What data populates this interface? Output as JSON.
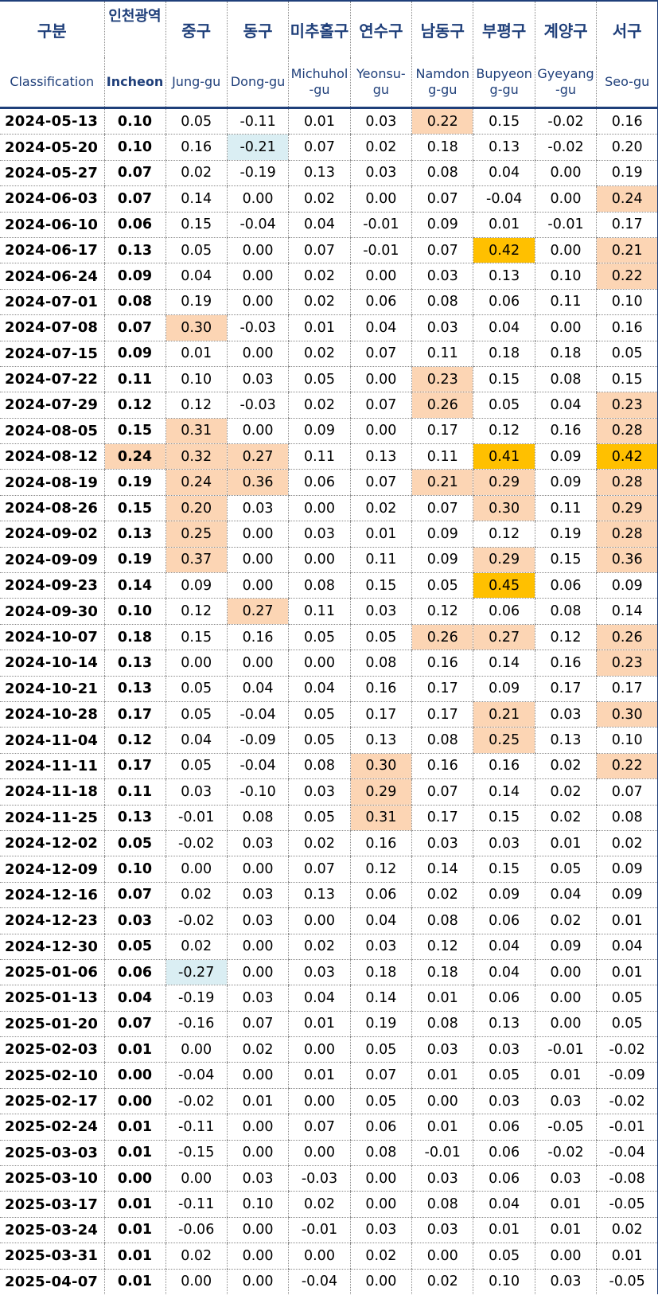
{
  "header": {
    "korean": [
      "구분",
      "인천광역",
      "중구",
      "동구",
      "미추홀구",
      "연수구",
      "남동구",
      "부평구",
      "계양구",
      "서구"
    ],
    "english": [
      "Classification",
      "Incheon",
      "Jung-gu",
      "Dong-gu",
      "Michuhol -gu",
      "Yeonsu- gu",
      "Namdon g-gu",
      "Bupyeon g-gu",
      "Gyeyang -gu",
      "Seo-gu"
    ]
  },
  "colors": {
    "highlight_light": "#fcd5b4",
    "highlight_strong": "#ffc000",
    "highlight_negative": "#daeef3",
    "header_text": "#1f3f7a"
  },
  "rows": [
    {
      "date": "2024-05-13",
      "values": [
        "0.10",
        "0.05",
        "-0.11",
        "0.01",
        "0.03",
        "0.22",
        "0.15",
        "-0.02",
        "0.16"
      ],
      "hl": [
        "",
        "",
        "",
        "",
        "",
        "l",
        "",
        "",
        ""
      ]
    },
    {
      "date": "2024-05-20",
      "values": [
        "0.10",
        "0.16",
        "-0.21",
        "0.07",
        "0.02",
        "0.18",
        "0.13",
        "-0.02",
        "0.20"
      ],
      "hl": [
        "",
        "",
        "n",
        "",
        "",
        "",
        "",
        "",
        ""
      ]
    },
    {
      "date": "2024-05-27",
      "values": [
        "0.07",
        "0.02",
        "-0.19",
        "0.13",
        "0.03",
        "0.08",
        "0.04",
        "0.00",
        "0.19"
      ],
      "hl": [
        "",
        "",
        "",
        "",
        "",
        "",
        "",
        "",
        ""
      ]
    },
    {
      "date": "2024-06-03",
      "values": [
        "0.07",
        "0.14",
        "0.00",
        "0.02",
        "0.00",
        "0.07",
        "-0.04",
        "0.00",
        "0.24"
      ],
      "hl": [
        "",
        "",
        "",
        "",
        "",
        "",
        "",
        "",
        "l"
      ]
    },
    {
      "date": "2024-06-10",
      "values": [
        "0.06",
        "0.15",
        "-0.04",
        "0.04",
        "-0.01",
        "0.09",
        "0.01",
        "-0.01",
        "0.17"
      ],
      "hl": [
        "",
        "",
        "",
        "",
        "",
        "",
        "",
        "",
        ""
      ]
    },
    {
      "date": "2024-06-17",
      "values": [
        "0.13",
        "0.05",
        "0.00",
        "0.07",
        "-0.01",
        "0.07",
        "0.42",
        "0.00",
        "0.21"
      ],
      "hl": [
        "",
        "",
        "",
        "",
        "",
        "",
        "s",
        "",
        "l"
      ]
    },
    {
      "date": "2024-06-24",
      "values": [
        "0.09",
        "0.04",
        "0.00",
        "0.02",
        "0.00",
        "0.03",
        "0.13",
        "0.10",
        "0.22"
      ],
      "hl": [
        "",
        "",
        "",
        "",
        "",
        "",
        "",
        "",
        "l"
      ]
    },
    {
      "date": "2024-07-01",
      "values": [
        "0.08",
        "0.19",
        "0.00",
        "0.02",
        "0.06",
        "0.08",
        "0.06",
        "0.11",
        "0.10"
      ],
      "hl": [
        "",
        "",
        "",
        "",
        "",
        "",
        "",
        "",
        ""
      ]
    },
    {
      "date": "2024-07-08",
      "values": [
        "0.07",
        "0.30",
        "-0.03",
        "0.01",
        "0.04",
        "0.03",
        "0.04",
        "0.00",
        "0.16"
      ],
      "hl": [
        "",
        "l",
        "",
        "",
        "",
        "",
        "",
        "",
        ""
      ]
    },
    {
      "date": "2024-07-15",
      "values": [
        "0.09",
        "0.01",
        "0.00",
        "0.02",
        "0.07",
        "0.11",
        "0.18",
        "0.18",
        "0.05"
      ],
      "hl": [
        "",
        "",
        "",
        "",
        "",
        "",
        "",
        "",
        ""
      ]
    },
    {
      "date": "2024-07-22",
      "values": [
        "0.11",
        "0.10",
        "0.03",
        "0.05",
        "0.00",
        "0.23",
        "0.15",
        "0.08",
        "0.15"
      ],
      "hl": [
        "",
        "",
        "",
        "",
        "",
        "l",
        "",
        "",
        ""
      ]
    },
    {
      "date": "2024-07-29",
      "values": [
        "0.12",
        "0.12",
        "-0.03",
        "0.02",
        "0.07",
        "0.26",
        "0.05",
        "0.04",
        "0.23"
      ],
      "hl": [
        "",
        "",
        "",
        "",
        "",
        "l",
        "",
        "",
        "l"
      ]
    },
    {
      "date": "2024-08-05",
      "values": [
        "0.15",
        "0.31",
        "0.00",
        "0.09",
        "0.00",
        "0.17",
        "0.12",
        "0.16",
        "0.28"
      ],
      "hl": [
        "",
        "l",
        "",
        "",
        "",
        "",
        "",
        "",
        "l"
      ]
    },
    {
      "date": "2024-08-12",
      "values": [
        "0.24",
        "0.32",
        "0.27",
        "0.11",
        "0.13",
        "0.11",
        "0.41",
        "0.09",
        "0.42"
      ],
      "hl": [
        "l",
        "l",
        "l",
        "",
        "",
        "",
        "s",
        "",
        "s"
      ]
    },
    {
      "date": "2024-08-19",
      "values": [
        "0.19",
        "0.24",
        "0.36",
        "0.06",
        "0.07",
        "0.21",
        "0.29",
        "0.09",
        "0.28"
      ],
      "hl": [
        "",
        "l",
        "l",
        "",
        "",
        "l",
        "l",
        "",
        "l"
      ]
    },
    {
      "date": "2024-08-26",
      "values": [
        "0.15",
        "0.20",
        "0.03",
        "0.00",
        "0.02",
        "0.07",
        "0.30",
        "0.11",
        "0.29"
      ],
      "hl": [
        "",
        "l",
        "",
        "",
        "",
        "",
        "l",
        "",
        "l"
      ]
    },
    {
      "date": "2024-09-02",
      "values": [
        "0.13",
        "0.25",
        "0.00",
        "0.03",
        "0.01",
        "0.09",
        "0.12",
        "0.19",
        "0.28"
      ],
      "hl": [
        "",
        "l",
        "",
        "",
        "",
        "",
        "",
        "",
        "l"
      ]
    },
    {
      "date": "2024-09-09",
      "values": [
        "0.19",
        "0.37",
        "0.00",
        "0.00",
        "0.11",
        "0.09",
        "0.29",
        "0.15",
        "0.36"
      ],
      "hl": [
        "",
        "l",
        "",
        "",
        "",
        "",
        "l",
        "",
        "l"
      ]
    },
    {
      "date": "2024-09-23",
      "values": [
        "0.14",
        "0.09",
        "0.00",
        "0.08",
        "0.15",
        "0.05",
        "0.45",
        "0.06",
        "0.09"
      ],
      "hl": [
        "",
        "",
        "",
        "",
        "",
        "",
        "s",
        "",
        ""
      ]
    },
    {
      "date": "2024-09-30",
      "values": [
        "0.10",
        "0.12",
        "0.27",
        "0.11",
        "0.03",
        "0.12",
        "0.06",
        "0.08",
        "0.14"
      ],
      "hl": [
        "",
        "",
        "l",
        "",
        "",
        "",
        "",
        "",
        ""
      ]
    },
    {
      "date": "2024-10-07",
      "values": [
        "0.18",
        "0.15",
        "0.16",
        "0.05",
        "0.05",
        "0.26",
        "0.27",
        "0.12",
        "0.26"
      ],
      "hl": [
        "",
        "",
        "",
        "",
        "",
        "l",
        "l",
        "",
        "l"
      ]
    },
    {
      "date": "2024-10-14",
      "values": [
        "0.13",
        "0.00",
        "0.00",
        "0.00",
        "0.08",
        "0.16",
        "0.14",
        "0.16",
        "0.23"
      ],
      "hl": [
        "",
        "",
        "",
        "",
        "",
        "",
        "",
        "",
        "l"
      ]
    },
    {
      "date": "2024-10-21",
      "values": [
        "0.13",
        "0.05",
        "0.04",
        "0.04",
        "0.16",
        "0.17",
        "0.09",
        "0.17",
        "0.17"
      ],
      "hl": [
        "",
        "",
        "",
        "",
        "",
        "",
        "",
        "",
        ""
      ]
    },
    {
      "date": "2024-10-28",
      "values": [
        "0.17",
        "0.05",
        "-0.04",
        "0.05",
        "0.17",
        "0.17",
        "0.21",
        "0.03",
        "0.30"
      ],
      "hl": [
        "",
        "",
        "",
        "",
        "",
        "",
        "l",
        "",
        "l"
      ]
    },
    {
      "date": "2024-11-04",
      "values": [
        "0.12",
        "0.04",
        "-0.09",
        "0.05",
        "0.13",
        "0.08",
        "0.25",
        "0.13",
        "0.10"
      ],
      "hl": [
        "",
        "",
        "",
        "",
        "",
        "",
        "l",
        "",
        ""
      ]
    },
    {
      "date": "2024-11-11",
      "values": [
        "0.17",
        "0.05",
        "-0.04",
        "0.08",
        "0.30",
        "0.16",
        "0.16",
        "0.02",
        "0.22"
      ],
      "hl": [
        "",
        "",
        "",
        "",
        "l",
        "",
        "",
        "",
        "l"
      ]
    },
    {
      "date": "2024-11-18",
      "values": [
        "0.11",
        "0.03",
        "-0.10",
        "0.03",
        "0.29",
        "0.07",
        "0.14",
        "0.02",
        "0.07"
      ],
      "hl": [
        "",
        "",
        "",
        "",
        "l",
        "",
        "",
        "",
        ""
      ]
    },
    {
      "date": "2024-11-25",
      "values": [
        "0.13",
        "-0.01",
        "0.08",
        "0.05",
        "0.31",
        "0.17",
        "0.15",
        "0.02",
        "0.08"
      ],
      "hl": [
        "",
        "",
        "",
        "",
        "l",
        "",
        "",
        "",
        ""
      ]
    },
    {
      "date": "2024-12-02",
      "values": [
        "0.05",
        "-0.02",
        "0.03",
        "0.02",
        "0.16",
        "0.03",
        "0.03",
        "0.01",
        "0.02"
      ],
      "hl": [
        "",
        "",
        "",
        "",
        "",
        "",
        "",
        "",
        ""
      ]
    },
    {
      "date": "2024-12-09",
      "values": [
        "0.10",
        "0.00",
        "0.00",
        "0.07",
        "0.12",
        "0.14",
        "0.15",
        "0.05",
        "0.09"
      ],
      "hl": [
        "",
        "",
        "",
        "",
        "",
        "",
        "",
        "",
        ""
      ]
    },
    {
      "date": "2024-12-16",
      "values": [
        "0.07",
        "0.02",
        "0.03",
        "0.13",
        "0.06",
        "0.02",
        "0.09",
        "0.04",
        "0.09"
      ],
      "hl": [
        "",
        "",
        "",
        "",
        "",
        "",
        "",
        "",
        ""
      ]
    },
    {
      "date": "2024-12-23",
      "values": [
        "0.03",
        "-0.02",
        "0.03",
        "0.00",
        "0.04",
        "0.08",
        "0.06",
        "0.02",
        "0.01"
      ],
      "hl": [
        "",
        "",
        "",
        "",
        "",
        "",
        "",
        "",
        ""
      ]
    },
    {
      "date": "2024-12-30",
      "values": [
        "0.05",
        "0.02",
        "0.00",
        "0.02",
        "0.03",
        "0.12",
        "0.04",
        "0.09",
        "0.04"
      ],
      "hl": [
        "",
        "",
        "",
        "",
        "",
        "",
        "",
        "",
        ""
      ]
    },
    {
      "date": "2025-01-06",
      "values": [
        "0.06",
        "-0.27",
        "0.00",
        "0.03",
        "0.18",
        "0.18",
        "0.04",
        "0.00",
        "0.01"
      ],
      "hl": [
        "",
        "n",
        "",
        "",
        "",
        "",
        "",
        "",
        ""
      ]
    },
    {
      "date": "2025-01-13",
      "values": [
        "0.04",
        "-0.19",
        "0.03",
        "0.04",
        "0.14",
        "0.01",
        "0.06",
        "0.00",
        "0.05"
      ],
      "hl": [
        "",
        "",
        "",
        "",
        "",
        "",
        "",
        "",
        ""
      ]
    },
    {
      "date": "2025-01-20",
      "values": [
        "0.07",
        "-0.16",
        "0.07",
        "0.01",
        "0.19",
        "0.08",
        "0.13",
        "0.00",
        "0.05"
      ],
      "hl": [
        "",
        "",
        "",
        "",
        "",
        "",
        "",
        "",
        ""
      ]
    },
    {
      "date": "2025-02-03",
      "values": [
        "0.01",
        "0.00",
        "0.02",
        "0.00",
        "0.05",
        "0.03",
        "0.03",
        "-0.01",
        "-0.02"
      ],
      "hl": [
        "",
        "",
        "",
        "",
        "",
        "",
        "",
        "",
        ""
      ]
    },
    {
      "date": "2025-02-10",
      "values": [
        "0.00",
        "-0.04",
        "0.00",
        "0.01",
        "0.07",
        "0.01",
        "0.05",
        "0.01",
        "-0.09"
      ],
      "hl": [
        "",
        "",
        "",
        "",
        "",
        "",
        "",
        "",
        ""
      ]
    },
    {
      "date": "2025-02-17",
      "values": [
        "0.00",
        "-0.02",
        "0.01",
        "0.00",
        "0.05",
        "0.00",
        "0.03",
        "0.03",
        "-0.02"
      ],
      "hl": [
        "",
        "",
        "",
        "",
        "",
        "",
        "",
        "",
        ""
      ]
    },
    {
      "date": "2025-02-24",
      "values": [
        "0.01",
        "-0.11",
        "0.00",
        "0.07",
        "0.06",
        "0.01",
        "0.06",
        "-0.05",
        "-0.01"
      ],
      "hl": [
        "",
        "",
        "",
        "",
        "",
        "",
        "",
        "",
        ""
      ]
    },
    {
      "date": "2025-03-03",
      "values": [
        "0.01",
        "-0.15",
        "0.00",
        "0.00",
        "0.08",
        "-0.01",
        "0.06",
        "-0.02",
        "-0.04"
      ],
      "hl": [
        "",
        "",
        "",
        "",
        "",
        "",
        "",
        "",
        ""
      ]
    },
    {
      "date": "2025-03-10",
      "values": [
        "0.00",
        "0.00",
        "0.03",
        "-0.03",
        "0.00",
        "0.03",
        "0.06",
        "0.03",
        "-0.08"
      ],
      "hl": [
        "",
        "",
        "",
        "",
        "",
        "",
        "",
        "",
        ""
      ]
    },
    {
      "date": "2025-03-17",
      "values": [
        "0.01",
        "-0.11",
        "0.10",
        "0.02",
        "0.00",
        "0.08",
        "0.04",
        "0.01",
        "-0.05"
      ],
      "hl": [
        "",
        "",
        "",
        "",
        "",
        "",
        "",
        "",
        ""
      ]
    },
    {
      "date": "2025-03-24",
      "values": [
        "0.01",
        "-0.06",
        "0.00",
        "-0.01",
        "0.03",
        "0.03",
        "0.01",
        "0.01",
        "0.02"
      ],
      "hl": [
        "",
        "",
        "",
        "",
        "",
        "",
        "",
        "",
        ""
      ]
    },
    {
      "date": "2025-03-31",
      "values": [
        "0.01",
        "0.02",
        "0.00",
        "0.00",
        "0.02",
        "0.00",
        "0.05",
        "0.00",
        "0.01"
      ],
      "hl": [
        "",
        "",
        "",
        "",
        "",
        "",
        "",
        "",
        ""
      ]
    },
    {
      "date": "2025-04-07",
      "values": [
        "0.01",
        "0.00",
        "0.00",
        "-0.04",
        "0.00",
        "0.02",
        "0.10",
        "0.03",
        "-0.05"
      ],
      "hl": [
        "",
        "",
        "",
        "",
        "",
        "",
        "",
        "",
        ""
      ]
    }
  ]
}
